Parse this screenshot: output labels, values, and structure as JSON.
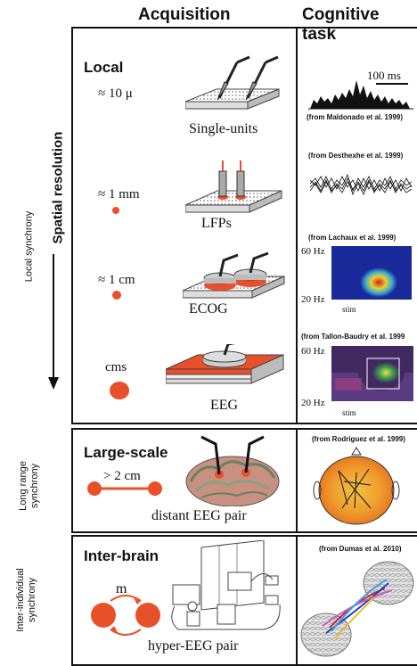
{
  "headers": {
    "acquisition": "Acquisition",
    "cognitive_task": "Cognitive task"
  },
  "left_labels": {
    "spatial_resolution": "Spatial resolution",
    "local_synchrony": "Local synchrony",
    "long_range_1": "Long range",
    "long_range_2": "synchrony",
    "inter_individual_1": "Inter-individual",
    "inter_individual_2": "synchrony"
  },
  "local": {
    "title": "Local",
    "rows": [
      {
        "scale": "≈ 10 μ",
        "method": "Single-units",
        "citation": "(from Maldonado et al. 1999)",
        "scalebar": "100 ms"
      },
      {
        "scale": "≈ 1 mm",
        "method": "LFPs",
        "citation": "(from Desthexhe et al. 1999)"
      },
      {
        "scale": "≈ 1 cm",
        "method": "ECOG",
        "citation": "(from Lachaux et al. 1999)",
        "freq_high": "60 Hz",
        "freq_low": "20 Hz",
        "stim": "stim"
      },
      {
        "scale": "cms",
        "method": "EEG",
        "citation": "(from Tallon-Baudry et al. 1999",
        "freq_high": "60 Hz",
        "freq_low": "20 Hz",
        "stim": "stim"
      }
    ]
  },
  "large_scale": {
    "title": "Large-scale",
    "distance": "> 2  cm",
    "method": "distant EEG pair",
    "citation": "(from Rodriguez et al. 1999)"
  },
  "inter_brain": {
    "title": "Inter-brain",
    "symbol": "m",
    "method": "hyper-EEG pair",
    "citation": "(from Dumas et al. 2010)"
  },
  "colors": {
    "accent": "#e8502a",
    "border": "#111111"
  }
}
